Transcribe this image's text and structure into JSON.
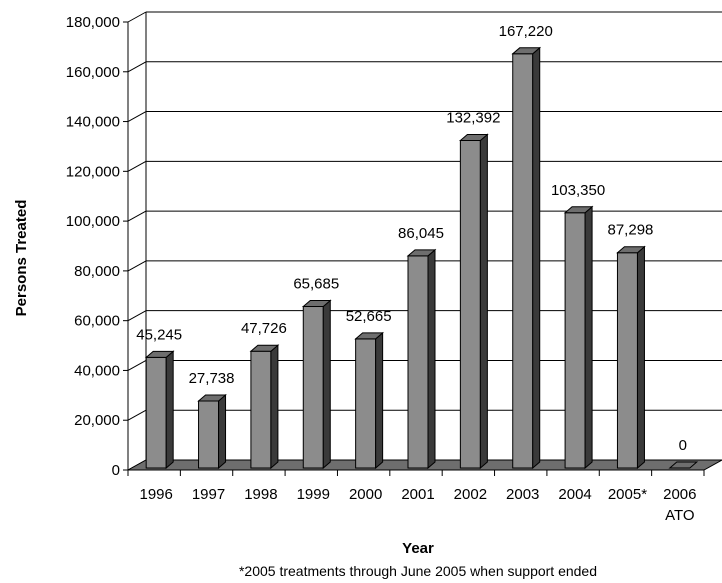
{
  "chart_data": {
    "type": "bar",
    "xlabel": "Year",
    "ylabel": "Persons Treated",
    "ylim": [
      0,
      180000
    ],
    "yticks": [
      0,
      20000,
      40000,
      60000,
      80000,
      100000,
      120000,
      140000,
      160000,
      180000
    ],
    "ytick_labels": [
      "0",
      "20,000",
      "40,000",
      "60,000",
      "80,000",
      "100,000",
      "120,000",
      "140,000",
      "160,000",
      "180,000"
    ],
    "grid": true,
    "style": "3d-columns",
    "categories": [
      "1996",
      "1997",
      "1998",
      "1999",
      "2000",
      "2001",
      "2002",
      "2003",
      "2004",
      "2005*",
      "2006 ATO"
    ],
    "category_labels": [
      [
        "1996"
      ],
      [
        "1997"
      ],
      [
        "1998"
      ],
      [
        "1999"
      ],
      [
        "2000"
      ],
      [
        "2001"
      ],
      [
        "2002"
      ],
      [
        "2003"
      ],
      [
        "2004"
      ],
      [
        "2005*"
      ],
      [
        "2006",
        "ATO"
      ]
    ],
    "values": [
      45245,
      27738,
      47726,
      65685,
      52665,
      86045,
      132392,
      167220,
      103350,
      87298,
      0
    ],
    "value_labels": [
      "45,245",
      "27,738",
      "47,726",
      "65,685",
      "52,665",
      "86,045",
      "132,392",
      "167,220",
      "103,350",
      "87,298",
      "0"
    ],
    "footnote": "*2005 treatments through June 2005 when support ended",
    "colors": {
      "bar_front": "#8c8c8c",
      "bar_side": "#3a3a3a",
      "bar_top": "#6e6e6e",
      "floor": "#6e6e6e",
      "grid": "#000000"
    }
  }
}
